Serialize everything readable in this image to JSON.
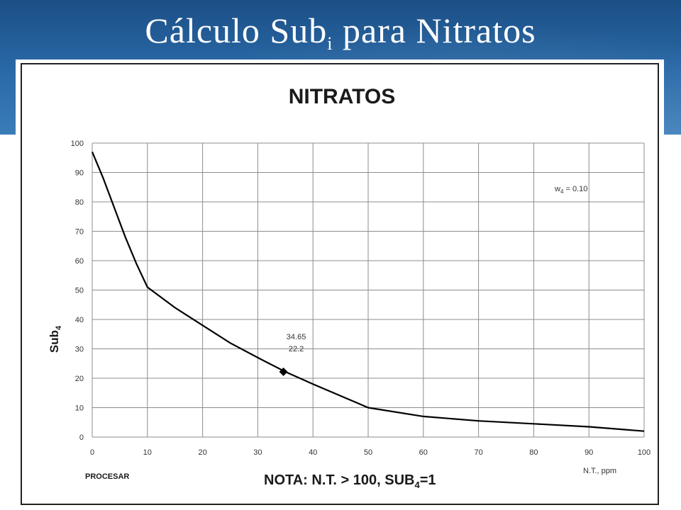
{
  "slide": {
    "title_main": "Cálculo Sub",
    "title_sub": "i",
    "title_rest": " para Nitratos"
  },
  "colors": {
    "banner": "#2a6aa8",
    "curve": "#000000",
    "grid": "#8c8c8c"
  },
  "chart_data": {
    "type": "line",
    "title": "NITRATOS",
    "ylabel_main": "Sub",
    "ylabel_sub": "4",
    "xlabel": "N.T., ppm",
    "xlim": [
      0,
      100
    ],
    "ylim": [
      0,
      100
    ],
    "grid": true,
    "x_ticks": [
      "0",
      "10",
      "20",
      "30",
      "40",
      "50",
      "60",
      "70",
      "80",
      "90",
      "100"
    ],
    "y_ticks": [
      "0",
      "10",
      "20",
      "30",
      "40",
      "50",
      "60",
      "70",
      "80",
      "90",
      "100"
    ],
    "series": [
      {
        "x": [
          0,
          2,
          4,
          6,
          8,
          10,
          15,
          20,
          25,
          30,
          35,
          40,
          45,
          50,
          60,
          70,
          80,
          90,
          100
        ],
        "y": [
          97,
          88,
          78,
          68,
          59,
          51,
          44,
          38,
          32,
          27,
          22.2,
          18,
          14,
          10,
          7,
          5.5,
          4.5,
          3.5,
          2
        ]
      }
    ],
    "highlight_point": {
      "x": 34.65,
      "y": 22.2,
      "label_x": "34.65",
      "label_y": "22.2"
    },
    "weight_note": {
      "prefix": "w",
      "sub": "4",
      "rest": " = 0.10"
    },
    "footer_left": "PROCESAR",
    "note": {
      "prefix": "NOTA: N.T. > 100, SUB",
      "sub": "4",
      "rest": "=1"
    }
  }
}
